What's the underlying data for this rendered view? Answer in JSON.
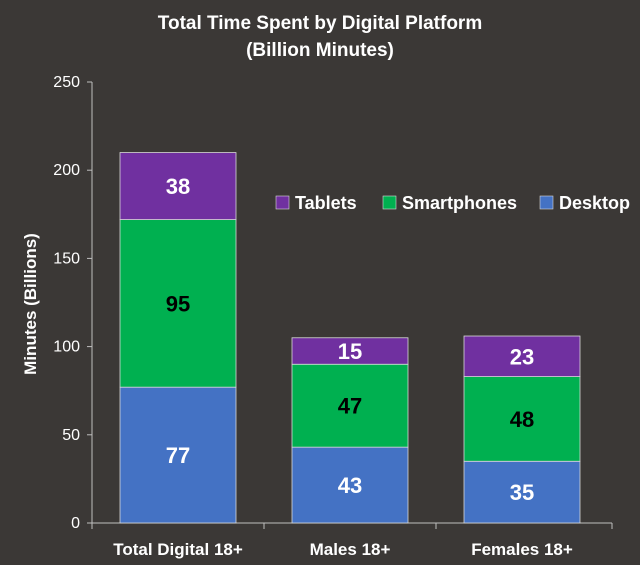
{
  "chart_data": {
    "type": "bar",
    "stacked": true,
    "title": "Total Time Spent by Digital Platform",
    "subtitle": "(Billion Minutes)",
    "xlabel": "",
    "ylabel": "Minutes (Billions)",
    "ylim": [
      0,
      250
    ],
    "yticks": [
      0,
      50,
      100,
      150,
      200,
      250
    ],
    "grid": false,
    "legend_position": "right",
    "categories": [
      "Total Digital 18+",
      "Males 18+",
      "Females 18+"
    ],
    "series": [
      {
        "name": "Desktop",
        "values": [
          77,
          43,
          35
        ],
        "color": "#4472c4",
        "label_color": "#ffffff"
      },
      {
        "name": "Smartphones",
        "values": [
          95,
          47,
          48
        ],
        "color": "#00b050",
        "label_color": "#000000"
      },
      {
        "name": "Tablets",
        "values": [
          38,
          15,
          23
        ],
        "color": "#7030a0",
        "label_color": "#ffffff"
      }
    ],
    "legend_order": [
      "Tablets",
      "Smartphones",
      "Desktop"
    ]
  },
  "colors": {
    "background": "#3b3836",
    "text": "#ffffff",
    "axis": "#bfbfbf"
  }
}
